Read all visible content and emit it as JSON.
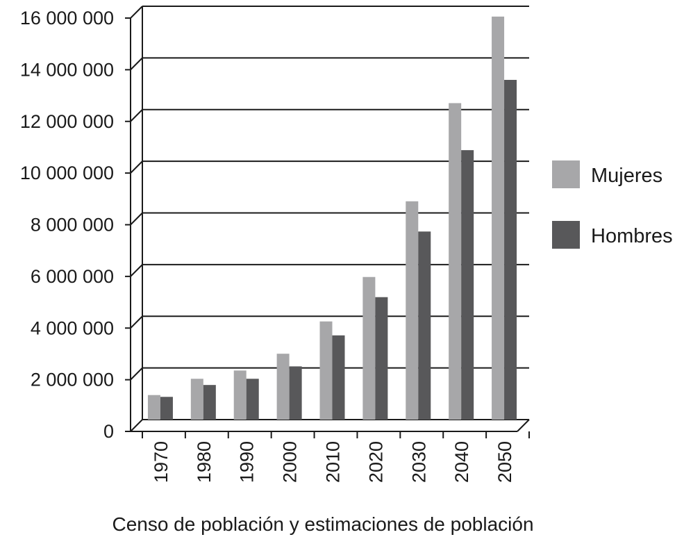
{
  "chart_data": {
    "type": "bar",
    "title": "",
    "xlabel": "Censo de población y estimaciones de población",
    "ylabel": "",
    "categories": [
      "1970",
      "1980",
      "1990",
      "2000",
      "2010",
      "2020",
      "2030",
      "2040",
      "2050"
    ],
    "series": [
      {
        "name": "Mujeres",
        "color": "#a7a7a9",
        "values": [
          950000,
          1580000,
          1900000,
          2550000,
          3800000,
          5520000,
          8450000,
          12250000,
          15600000
        ]
      },
      {
        "name": "Hombres",
        "color": "#58585a",
        "values": [
          880000,
          1340000,
          1580000,
          2060000,
          3260000,
          4740000,
          7280000,
          10430000,
          13150000
        ]
      }
    ],
    "yticks": [
      "0",
      "2 000 000",
      "4 000 000",
      "6 000 000",
      "8 000 000",
      "10 000 000",
      "12 000 000",
      "14 000 000",
      "16 000 000"
    ],
    "ylim": [
      0,
      16000000
    ],
    "grid": true,
    "legend_position": "right"
  }
}
